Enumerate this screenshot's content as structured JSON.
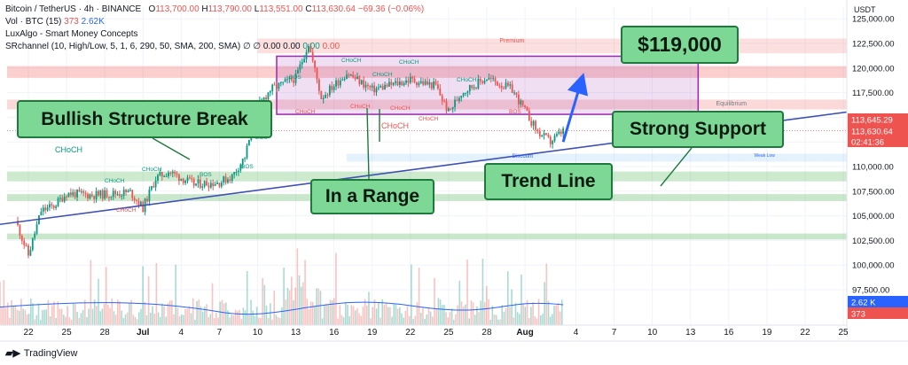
{
  "header": {
    "symbol": "Bitcoin / TetherUS · 4h · BINANCE",
    "ohlc": {
      "o_label": "O",
      "o": "113,700.00",
      "h_label": "H",
      "h": "113,790.00",
      "l_label": "L",
      "l": "113,551.00",
      "c_label": "C",
      "c": "113,630.64",
      "change": "−69.36 (−0.06%)"
    },
    "vol": {
      "label": "Vol · BTC (15)",
      "v1": "373",
      "v2": "2.62K"
    },
    "indicator1": "LuxAlgo - Smart Money Concepts",
    "indicator2": {
      "name": "SRchannel (10, High/Low, 5, 1, 6, 290, 50, SMA, 200, SMA)",
      "vals": "∅  ∅  0.00  0.00",
      "v_green": "0.00",
      "v_red": "0.00"
    }
  },
  "callouts": {
    "bullish": "Bullish Structure Break",
    "range": "In a Range",
    "target": "$119,000",
    "support": "Strong Support",
    "trend": "Trend Line"
  },
  "annotations": {
    "premium": "Premium",
    "strong_high": "Strong High",
    "equilibrium": "Equilibrium",
    "discount": "Discount",
    "weak_low": "Weak Low",
    "choch": "CHoCH",
    "bos": "BOS"
  },
  "price_scale": {
    "currency": "USDT",
    "badge_price1": "113,645.29",
    "badge_price2": "113,630.64",
    "badge_timer": "02:41:36",
    "badge_vol1": "2.62 K",
    "badge_vol2": "373"
  },
  "footer": {
    "brand": "TradingView"
  },
  "colors": {
    "up": "#089981",
    "down": "#ef5350",
    "trend": "#3f51b5",
    "arrow": "#2962ff",
    "callout": "#7dd896",
    "range": "#9c27b0"
  },
  "chart_data": {
    "type": "candlestick",
    "y_axis": {
      "range": [
        97000,
        125500
      ],
      "ticks": [
        97500,
        100000,
        102500,
        105000,
        107500,
        110000,
        112500,
        115000,
        117500,
        120000,
        122500,
        125000
      ],
      "tick_labels": [
        "97,500.00",
        "100,000.00",
        "102,500.00",
        "105,000.00",
        "107,500.00",
        "110,000.00",
        "112,500.00",
        "115,000.00",
        "117,500.00",
        "120,000.00",
        "122,500.00",
        "125,000.00"
      ]
    },
    "x_axis": {
      "tick_labels": [
        "22",
        "25",
        "28",
        "Jul",
        "4",
        "7",
        "10",
        "13",
        "16",
        "19",
        "22",
        "25",
        "28",
        "Aug",
        "4",
        "7",
        "10",
        "13",
        "16",
        "19",
        "22",
        "25"
      ]
    },
    "close_path": [
      {
        "date": "Jun 21",
        "close": 104500
      },
      {
        "date": "Jun 22",
        "close": 101000
      },
      {
        "date": "Jun 23",
        "close": 105500
      },
      {
        "date": "Jun 24",
        "close": 106000
      },
      {
        "date": "Jun 25",
        "close": 107300
      },
      {
        "date": "Jun 27",
        "close": 107100
      },
      {
        "date": "Jun 30",
        "close": 107400
      },
      {
        "date": "Jul 1",
        "close": 105800
      },
      {
        "date": "Jul 2",
        "close": 108800
      },
      {
        "date": "Jul 3",
        "close": 109500
      },
      {
        "date": "Jul 5",
        "close": 108200
      },
      {
        "date": "Jul 7",
        "close": 108400
      },
      {
        "date": "Jul 8",
        "close": 109000
      },
      {
        "date": "Jul 9",
        "close": 111000
      },
      {
        "date": "Jul 10",
        "close": 116000
      },
      {
        "date": "Jul 11",
        "close": 117800
      },
      {
        "date": "Jul 13",
        "close": 119000
      },
      {
        "date": "Jul 14",
        "close": 122500
      },
      {
        "date": "Jul 15",
        "close": 117000
      },
      {
        "date": "Jul 17",
        "close": 119500
      },
      {
        "date": "Jul 19",
        "close": 117800
      },
      {
        "date": "Jul 22",
        "close": 118800
      },
      {
        "date": "Jul 24",
        "close": 118200
      },
      {
        "date": "Jul 25",
        "close": 115500
      },
      {
        "date": "Jul 26",
        "close": 117500
      },
      {
        "date": "Jul 28",
        "close": 119000
      },
      {
        "date": "Jul 30",
        "close": 117800
      },
      {
        "date": "Aug 1",
        "close": 113500
      },
      {
        "date": "Aug 2",
        "close": 112500
      },
      {
        "date": "Aug 3",
        "close": 113630
      }
    ],
    "zones": {
      "premium": [
        121500,
        123000
      ],
      "resistance": [
        119000,
        120200
      ],
      "equilibrium": [
        115800,
        116800
      ],
      "discount": [
        110500,
        111300
      ],
      "support1": [
        108500,
        109500
      ],
      "support2": [
        106500,
        107200
      ],
      "support3": [
        102600,
        103200
      ],
      "range_box": [
        115300,
        121200
      ]
    },
    "trend_line": {
      "start": {
        "date": "Jun 19",
        "price": 104000
      },
      "end": {
        "date": "Aug 28",
        "price": 116000
      }
    },
    "target": 119000,
    "current_price": 113630.64
  }
}
